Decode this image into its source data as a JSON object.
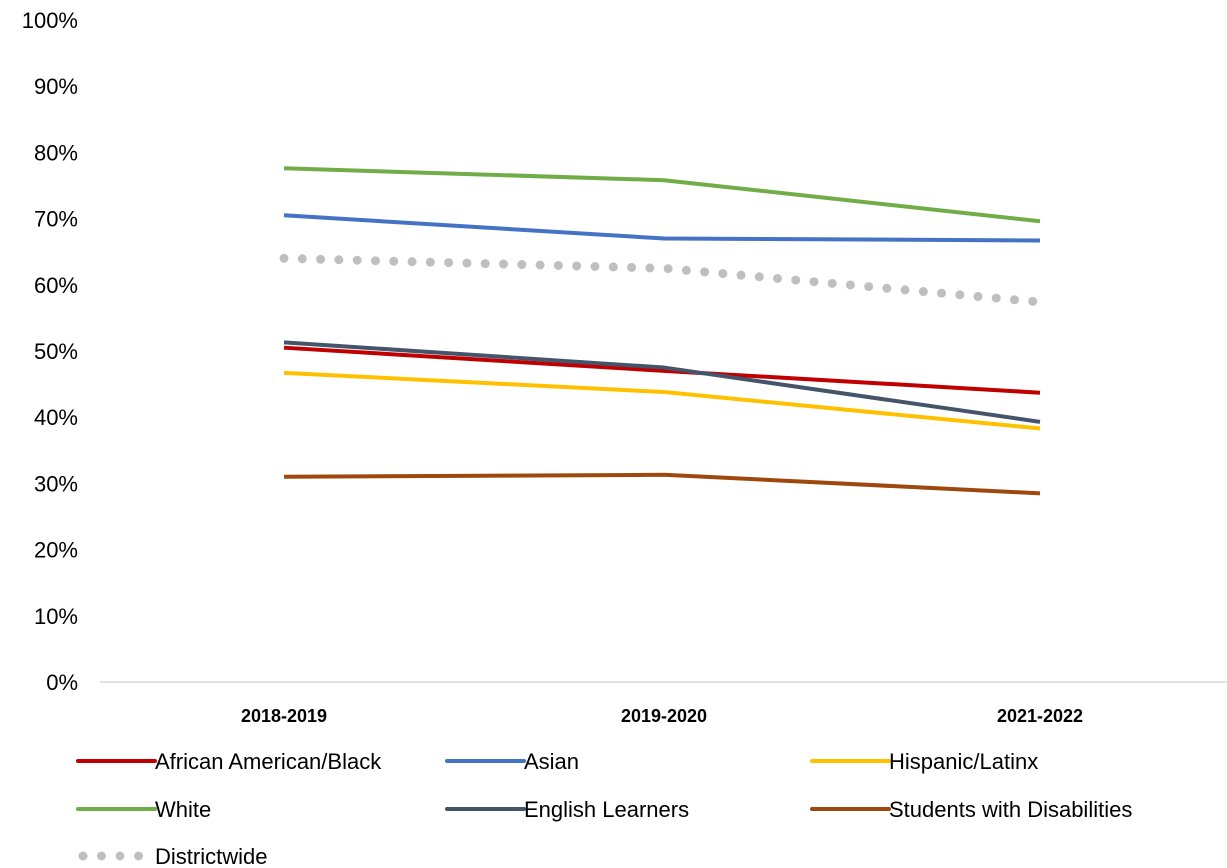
{
  "chart_data": {
    "type": "line",
    "title": "",
    "xlabel": "",
    "ylabel": "",
    "categories": [
      "2018-2019",
      "2019-2020",
      "2021-2022"
    ],
    "ylim": [
      0,
      100
    ],
    "yticks": [
      "0%",
      "10%",
      "20%",
      "30%",
      "40%",
      "50%",
      "60%",
      "70%",
      "80%",
      "90%",
      "100%"
    ],
    "grid": false,
    "legend_position": "bottom",
    "series": [
      {
        "name": "African American/Black",
        "values": [
          50.5,
          47,
          43.7
        ],
        "color": "#c00000",
        "style": "solid"
      },
      {
        "name": "Asian",
        "values": [
          70.5,
          67,
          66.7
        ],
        "color": "#4472c4",
        "style": "solid"
      },
      {
        "name": "Hispanic/Latinx",
        "values": [
          46.7,
          43.8,
          38.3
        ],
        "color": "#ffc000",
        "style": "solid"
      },
      {
        "name": "White",
        "values": [
          77.6,
          75.8,
          69.6
        ],
        "color": "#70ad47",
        "style": "solid"
      },
      {
        "name": "English Learners",
        "values": [
          51.3,
          47.5,
          39.3
        ],
        "color": "#44546a",
        "style": "solid"
      },
      {
        "name": "Students with Disabilities",
        "values": [
          31,
          31.3,
          28.5
        ],
        "color": "#9e480e",
        "style": "solid"
      },
      {
        "name": "Districtwide",
        "values": [
          64,
          62.5,
          57.4
        ],
        "color": "#bfbfbf",
        "style": "dotted"
      }
    ]
  }
}
